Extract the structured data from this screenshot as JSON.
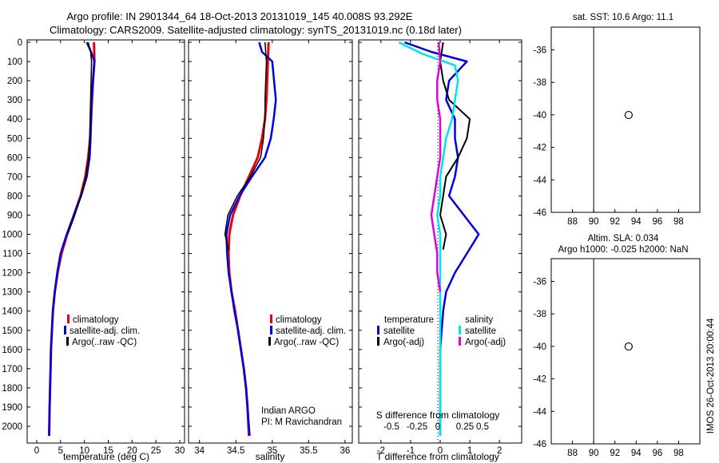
{
  "header": {
    "title_line1": "Argo profile: IN 2901344_64 18-Oct-2013 20131019_145 40.008S 93.292E",
    "title_line2": "Climatology: CARS2009. Satellite-adjusted climatology: synTS_20131019.nc (0.18d later)"
  },
  "depth_ticks": [
    0,
    100,
    200,
    300,
    400,
    500,
    600,
    700,
    800,
    900,
    1000,
    1100,
    1200,
    1300,
    1400,
    1500,
    1600,
    1700,
    1800,
    1900,
    2000
  ],
  "legend_profiles": {
    "climatology": "climatology",
    "satellite": "satellite-adj. clim.",
    "argo": "Argo(..raw -QC)"
  },
  "legend_diff": {
    "temperature_header": "temperature",
    "temperature_satellite": "satellite",
    "temperature_argo": "Argo(-adj)",
    "salinity_header": "salinity",
    "salinity_satellite": "satellite",
    "salinity_argo": "Argo(-adj)"
  },
  "credit": {
    "line1": "Indian ARGO",
    "line2": "PI: M Ravichandran"
  },
  "colors": {
    "climatology": "#e8000b",
    "satellite": "#0000dd",
    "argo": "#000000",
    "sal_satellite": "#00e5e5",
    "sal_argo": "#e000e0"
  },
  "chart_data": [
    {
      "type": "line",
      "xlabel": "temperature (deg C)",
      "ylabel": "",
      "xlim": [
        -2,
        31
      ],
      "ylim": [
        2050,
        0
      ],
      "xticks": [
        0,
        5,
        10,
        15,
        20,
        25,
        30
      ],
      "series": [
        {
          "name": "climatology",
          "color": "#e8000b",
          "width": 3,
          "x": [
            12.0,
            12.1,
            11.8,
            11.6,
            11.4,
            11.2,
            10.8,
            10.2,
            9.2,
            7.8,
            6.4,
            5.2,
            4.4,
            3.8,
            3.4,
            3.2,
            3.0,
            2.9,
            2.8,
            2.7,
            2.6
          ],
          "y": [
            0,
            100,
            200,
            300,
            400,
            500,
            600,
            700,
            800,
            900,
            1000,
            1100,
            1200,
            1300,
            1400,
            1500,
            1600,
            1700,
            1800,
            1900,
            2050
          ]
        },
        {
          "name": "satellite-adj. clim.",
          "color": "#0000dd",
          "width": 2.5,
          "x": [
            10.5,
            11.4,
            12.1,
            11.5,
            11.4,
            11.3,
            11.1,
            10.5,
            9.3,
            7.8,
            6.3,
            5.0,
            4.3,
            3.8,
            3.4,
            3.2,
            3.0,
            2.9,
            2.8,
            2.7,
            2.6
          ],
          "y": [
            0,
            50,
            100,
            300,
            400,
            500,
            600,
            700,
            800,
            900,
            1000,
            1100,
            1200,
            1300,
            1400,
            1500,
            1600,
            1700,
            1800,
            1900,
            2050
          ]
        },
        {
          "name": "Argo(..raw -QC)",
          "color": "#000000",
          "width": 1.5,
          "x": [
            10.8,
            11.3,
            11.5,
            11.3,
            11.2,
            11.1,
            10.9,
            10.3,
            9.3,
            8.0,
            6.5
          ],
          "y": [
            0,
            50,
            100,
            300,
            400,
            500,
            600,
            700,
            800,
            900,
            1000
          ]
        }
      ]
    },
    {
      "type": "line",
      "xlabel": "salinity",
      "ylabel": "",
      "xlim": [
        33.85,
        36.1
      ],
      "ylim": [
        2050,
        0
      ],
      "xticks": [
        34,
        34.5,
        35,
        35.5,
        36
      ],
      "series": [
        {
          "name": "climatology",
          "color": "#e8000b",
          "width": 3,
          "x": [
            34.95,
            34.94,
            34.93,
            34.92,
            34.9,
            34.86,
            34.8,
            34.68,
            34.56,
            34.46,
            34.41,
            34.4,
            34.41,
            34.44,
            34.49,
            34.53,
            34.57,
            34.61,
            34.64,
            34.66,
            34.68
          ],
          "y": [
            0,
            100,
            200,
            300,
            400,
            500,
            600,
            700,
            800,
            900,
            1000,
            1100,
            1200,
            1300,
            1400,
            1500,
            1600,
            1700,
            1800,
            1900,
            2050
          ]
        },
        {
          "name": "satellite-adj. clim.",
          "color": "#0000dd",
          "width": 2.5,
          "x": [
            34.82,
            34.86,
            35.0,
            35.05,
            35.02,
            34.98,
            34.9,
            34.72,
            34.55,
            34.42,
            34.37,
            34.38,
            34.4,
            34.44,
            34.48,
            34.53,
            34.57,
            34.61,
            34.64,
            34.66,
            34.69
          ],
          "y": [
            0,
            50,
            100,
            300,
            400,
            500,
            600,
            700,
            800,
            900,
            1000,
            1100,
            1200,
            1300,
            1400,
            1500,
            1600,
            1700,
            1800,
            1900,
            2050
          ]
        },
        {
          "name": "Argo(..raw -QC)",
          "color": "#000000",
          "width": 1.5,
          "x": [
            34.9,
            34.92,
            34.91,
            34.9,
            34.9,
            34.88,
            34.84,
            34.7,
            34.52,
            34.39,
            34.35,
            34.4
          ],
          "y": [
            0,
            100,
            200,
            300,
            400,
            500,
            600,
            700,
            800,
            900,
            1000,
            1080
          ]
        }
      ]
    },
    {
      "type": "line",
      "xlabel": "T difference from climatology",
      "ylabel": "",
      "xlim": [
        -2.75,
        2.75
      ],
      "ylim": [
        2050,
        0
      ],
      "xticks": [
        -2,
        -1,
        0,
        1,
        2
      ],
      "secondary_xlabel": "S difference from climatology",
      "secondary_xticks": [
        "-0.5",
        "-0.25",
        "0",
        "0.25",
        "0.5"
      ],
      "series": [
        {
          "name": "temperature satellite",
          "color": "#0000dd",
          "width": 2.5,
          "x": [
            -1.2,
            -0.3,
            0.9,
            0.3,
            0.2,
            0.5,
            0.5,
            0.6,
            0.5,
            0.3,
            1.3,
            0.9,
            0.5,
            0.2,
            0.1,
            0.05,
            0.0,
            0.0,
            0.0,
            0.0,
            0.0
          ],
          "y": [
            0,
            50,
            100,
            200,
            300,
            400,
            500,
            600,
            700,
            800,
            1000,
            1100,
            1200,
            1300,
            1400,
            1500,
            1600,
            1700,
            1800,
            1900,
            2050
          ]
        },
        {
          "name": "temperature Argo(-adj)",
          "color": "#000000",
          "width": 2,
          "x": [
            0.1,
            0.0,
            0.1,
            0.3,
            1.0,
            0.9,
            0.6,
            0.2,
            0.1,
            0.0,
            0.2,
            0.1
          ],
          "y": [
            0,
            100,
            200,
            300,
            400,
            500,
            600,
            700,
            800,
            900,
            1000,
            1080
          ]
        },
        {
          "name": "salinity satellite",
          "color": "#00e5e5",
          "width": 2.5,
          "x": [
            -1.4,
            -0.6,
            0.5,
            0.6,
            0.5,
            0.4,
            0.2,
            0.1,
            0.0,
            0.0,
            -0.1,
            0.0,
            0.0,
            0.0,
            0.0,
            0.0,
            0.0,
            0.0,
            0.0
          ],
          "y": [
            0,
            60,
            120,
            200,
            300,
            400,
            500,
            600,
            700,
            800,
            900,
            1000,
            1200,
            1400,
            1600,
            1800,
            1900,
            2000,
            2050
          ]
        },
        {
          "name": "salinity Argo(-adj)",
          "color": "#e000e0",
          "width": 2.5,
          "x": [
            -0.05,
            0.0,
            -0.1,
            -0.1,
            0.0,
            0.0,
            0.0,
            -0.1,
            -0.2,
            -0.3,
            -0.2,
            -0.1,
            -0.1,
            0.0
          ],
          "y": [
            0,
            100,
            200,
            300,
            400,
            500,
            600,
            700,
            800,
            900,
            1000,
            1100,
            1200,
            1300
          ]
        }
      ]
    }
  ],
  "maps": [
    {
      "title": "sat. SST: 10.6  Argo: 11.1",
      "xlim": [
        86,
        100
      ],
      "ylim": [
        -46,
        -34.6
      ],
      "xticks": [
        88,
        90,
        92,
        94,
        96,
        98
      ],
      "yticks": [
        -36,
        -38,
        -40,
        -42,
        -44,
        -46
      ],
      "data_west_edge": 90,
      "marker": {
        "lon": 93.292,
        "lat": -40.008
      }
    },
    {
      "title_line1": "Altim. SLA: 0.034",
      "title_line2": "Argo h1000: -0.025  h2000: NaN",
      "xlim": [
        86,
        100
      ],
      "ylim": [
        -46,
        -34.6
      ],
      "xticks": [
        88,
        90,
        92,
        94,
        96,
        98
      ],
      "yticks": [
        -36,
        -38,
        -40,
        -42,
        -44,
        -46
      ],
      "data_west_edge": 90,
      "marker": {
        "lon": 93.292,
        "lat": -40.008
      }
    }
  ],
  "imos_stamp": "IMOS 26-Oct-2013 20:00:44"
}
